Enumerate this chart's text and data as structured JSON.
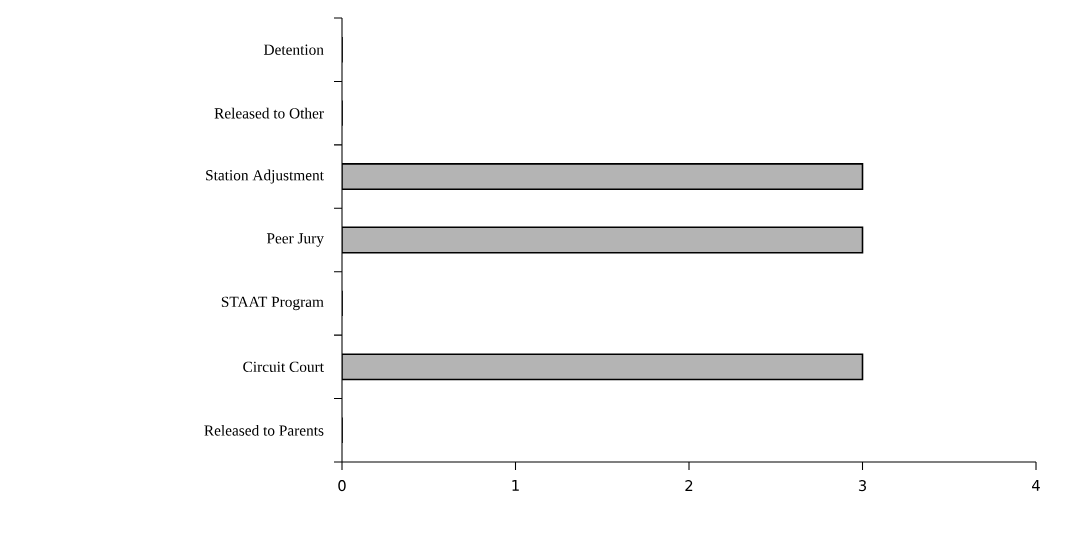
{
  "chart_data": {
    "type": "bar",
    "orientation": "horizontal",
    "categories": [
      "Detention",
      "Released to Other",
      "Station Adjustment",
      "Peer Jury",
      "STAAT Program",
      "Circuit Court",
      "Released to Parents"
    ],
    "values": [
      0,
      0,
      3,
      3,
      0,
      3,
      0
    ],
    "color": "#b4b4b4",
    "xlim": [
      0,
      4
    ],
    "xticks": [
      0,
      1,
      2,
      3,
      4
    ]
  }
}
